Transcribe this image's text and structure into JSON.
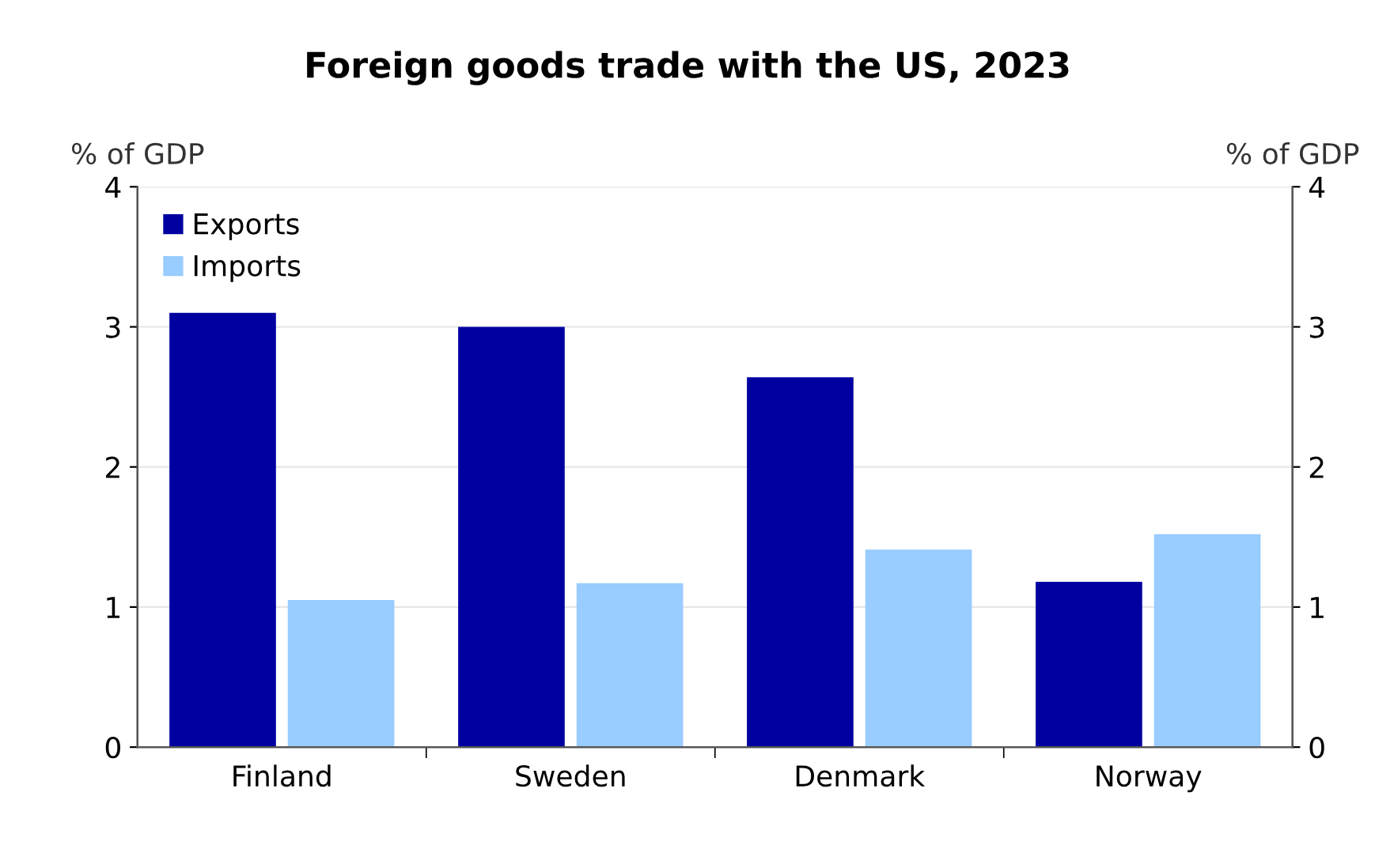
{
  "chart_data": {
    "type": "bar",
    "title": "Foreign goods trade with the US, 2023",
    "ylabel": "% of GDP",
    "y2label": "% of GDP",
    "categories": [
      "Finland",
      "Sweden",
      "Denmark",
      "Norway"
    ],
    "series": [
      {
        "name": "Exports",
        "color": "#0000a0",
        "values": [
          3.1,
          3.0,
          2.64,
          1.18
        ]
      },
      {
        "name": "Imports",
        "color": "#99ccff",
        "values": [
          1.05,
          1.17,
          1.41,
          1.52
        ]
      }
    ],
    "ylim": [
      0,
      4
    ],
    "yticks": [
      0,
      1,
      2,
      3,
      4
    ],
    "y2lim": [
      0,
      4
    ],
    "y2ticks": [
      0,
      1,
      2,
      3,
      4
    ],
    "grid": "y",
    "legend": "top left"
  }
}
